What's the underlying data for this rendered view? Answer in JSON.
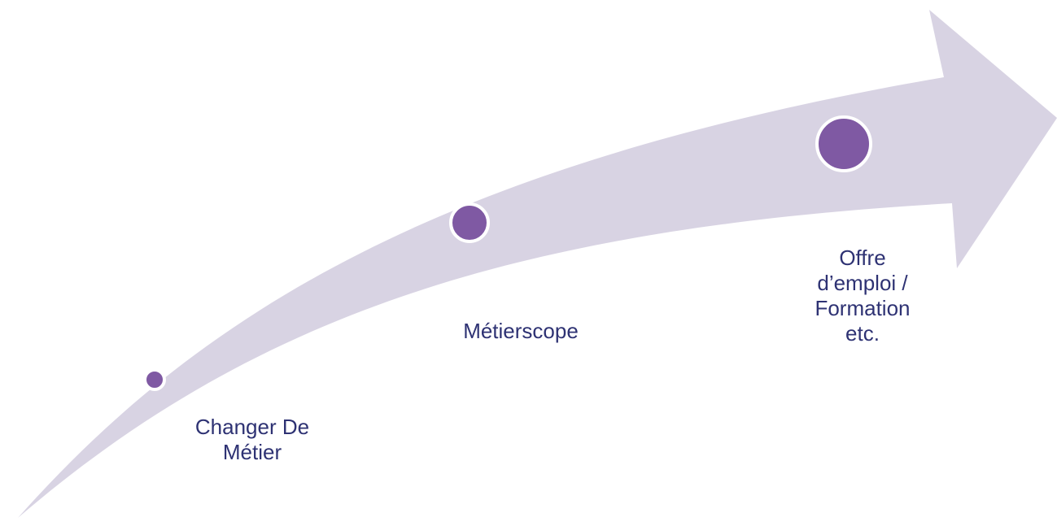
{
  "colors": {
    "arrow_fill": "#d8d3e3",
    "dot_fill": "#7f59a3",
    "dot_stroke": "#ffffff",
    "label_text": "#2e3273"
  },
  "steps": [
    {
      "label": "Changer De\nMétier"
    },
    {
      "label": "Métierscope"
    },
    {
      "label": "Offre\nd’emploi /\nFormation\netc."
    }
  ]
}
